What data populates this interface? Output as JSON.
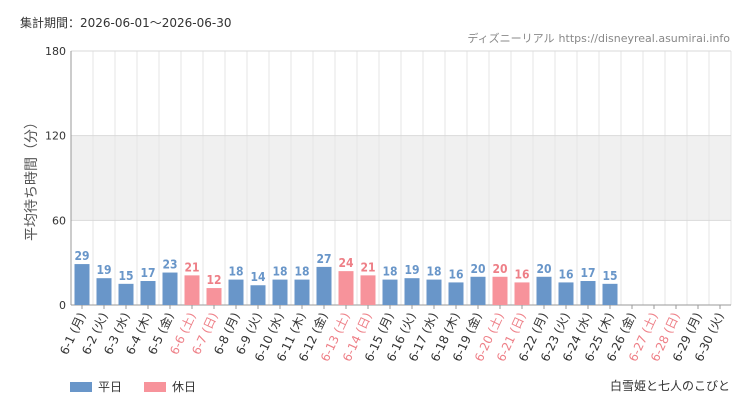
{
  "period_text": "集計期間：2026-06-01～2026-06-30",
  "site": {
    "name": "ディズニーリアル",
    "url": "https://disneyreal.asumirai.info"
  },
  "attraction": "白雪姫と七人のこびと",
  "colors": {
    "weekday": "#6996c9",
    "holiday": "#f7939b",
    "weekday_text": "#6996c9",
    "holiday_text": "#ee7f87",
    "band": "#f0f0f0",
    "grid": "#e6e6e6"
  },
  "legend": {
    "weekday": "平日",
    "holiday": "休日"
  },
  "chart_data": {
    "type": "bar",
    "ylabel": "平均待ち時間（分）",
    "ylim": [
      0,
      180
    ],
    "yticks": [
      0,
      60,
      120,
      180
    ],
    "categories": [
      "6-1 (月)",
      "6-2 (火)",
      "6-3 (水)",
      "6-4 (木)",
      "6-5 (金)",
      "6-6 (土)",
      "6-7 (日)",
      "6-8 (月)",
      "6-9 (火)",
      "6-10 (水)",
      "6-11 (木)",
      "6-12 (金)",
      "6-13 (土)",
      "6-14 (日)",
      "6-15 (月)",
      "6-16 (火)",
      "6-17 (水)",
      "6-18 (木)",
      "6-19 (金)",
      "6-20 (土)",
      "6-21 (日)",
      "6-22 (月)",
      "6-23 (火)",
      "6-24 (水)",
      "6-25 (木)",
      "6-26 (金)",
      "6-27 (土)",
      "6-28 (日)",
      "6-29 (月)",
      "6-30 (火)"
    ],
    "values": [
      29,
      19,
      15,
      17,
      23,
      21,
      12,
      18,
      14,
      18,
      18,
      27,
      24,
      21,
      18,
      19,
      18,
      16,
      20,
      20,
      16,
      20,
      16,
      17,
      15,
      null,
      null,
      null,
      null,
      null
    ],
    "holiday": [
      false,
      false,
      false,
      false,
      false,
      true,
      true,
      false,
      false,
      false,
      false,
      false,
      true,
      true,
      false,
      false,
      false,
      false,
      false,
      true,
      true,
      false,
      false,
      false,
      false,
      false,
      true,
      true,
      false,
      false
    ],
    "series": [
      {
        "name": "平日"
      },
      {
        "name": "休日"
      }
    ]
  }
}
